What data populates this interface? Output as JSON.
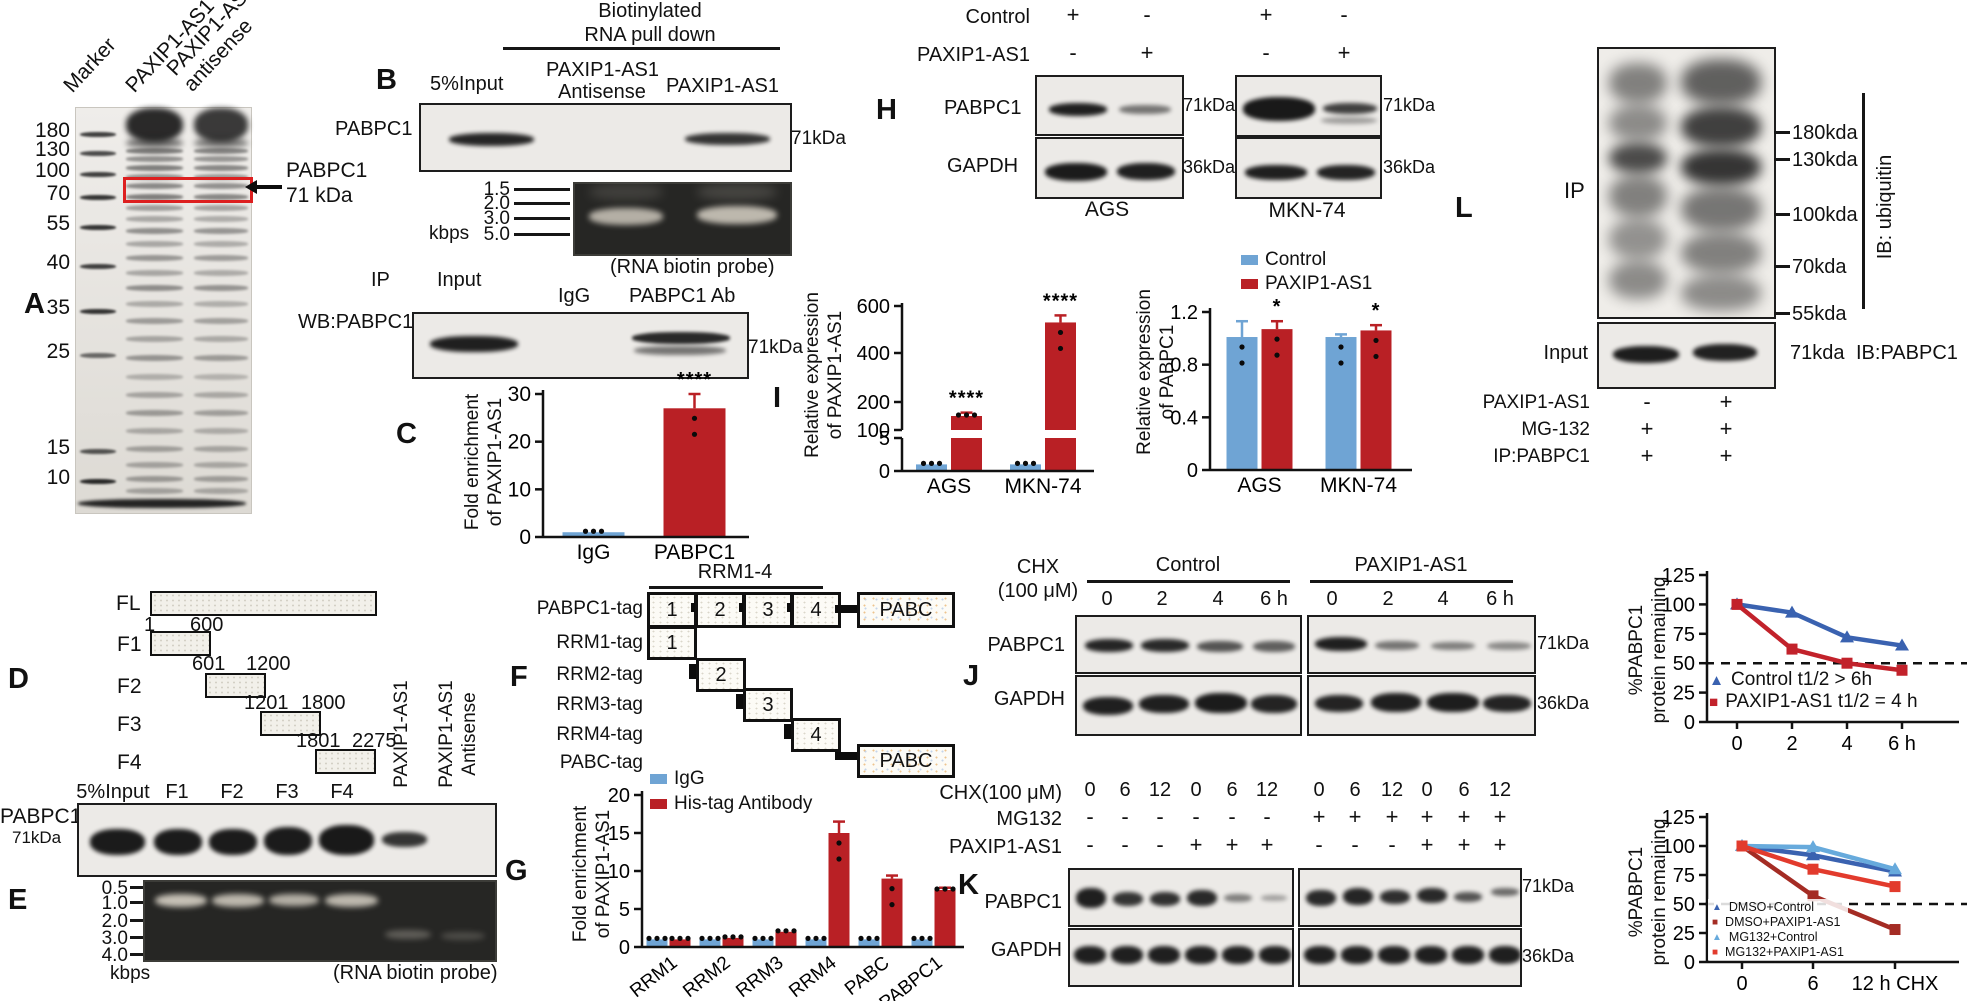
{
  "colors": {
    "blue": "#6FA4D4",
    "red": "#B92025"
  },
  "panelA": {
    "letter": "A",
    "lane1": "Marker",
    "lane2": "PAXIP1-AS1",
    "lane3a": "PAXIP1-AS1",
    "lane3b": "antisense",
    "ladder": [
      "180",
      "130",
      "100",
      "70",
      "55",
      "40",
      "35",
      "25",
      "15",
      "10"
    ],
    "target_label": "PABPC1",
    "target_kda": "71 kDa"
  },
  "panelB": {
    "letter": "B",
    "header1": "Biotinylated",
    "header2": "RNA pull down",
    "lane_input": "5%Input",
    "lane_anti1": "PAXIP1-AS1",
    "lane_anti2": "Antisense",
    "lane_sense": "PAXIP1-AS1",
    "blot_label": "PABPC1",
    "blot_kda": "71kDa",
    "gel_ticks": [
      "1.5",
      "2.0",
      "3.0",
      "5.0"
    ],
    "gel_unit": "kbps",
    "gel_caption": "(RNA biotin probe)",
    "ip_label": "IP",
    "ip_lane1": "Input",
    "ip_lane2": "IgG",
    "ip_lane3": "PABPC1 Ab",
    "wb_label": "WB:PABPC1",
    "wb_kda": "71kDa"
  },
  "panelC": {
    "letter": "C"
  },
  "panelD": {
    "letter": "D",
    "rows": [
      {
        "name": "FL"
      },
      {
        "name": "F1",
        "start": "1",
        "end": "600"
      },
      {
        "name": "F2",
        "start": "601",
        "end": "1200"
      },
      {
        "name": "F3",
        "start": "1201",
        "end": "1800"
      },
      {
        "name": "F4",
        "start": "1801",
        "end": "2275"
      }
    ],
    "lanes": [
      "5%Input",
      "F1",
      "F2",
      "F3",
      "F4"
    ],
    "rot1": "PAXIP1-AS1",
    "rot2a": "PAXIP1-AS1",
    "rot2b": "Antisense",
    "blot_label": "PABPC1",
    "blot_kda": "71kDa"
  },
  "panelE": {
    "letter": "E",
    "ticks": [
      "0.5",
      "1.0",
      "2.0",
      "3.0",
      "4.0"
    ],
    "unit": "kbps",
    "caption": "(RNA biotin probe)"
  },
  "panelF": {
    "letter": "F",
    "bracket": "RRM1-4",
    "row_labels": [
      "PABPC1-tag",
      "RRM1-tag",
      "RRM2-tag",
      "RRM3-tag",
      "RRM4-tag",
      "PABC-tag"
    ],
    "box_numbers": [
      "1",
      "2",
      "3",
      "4"
    ],
    "pabc": "PABC"
  },
  "panelG": {
    "letter": "G",
    "legend": [
      "IgG",
      "His-tag Antibody"
    ]
  },
  "panelH": {
    "letter": "H",
    "row1_label": "Control",
    "row2_label": "PAXIP1-AS1",
    "signs_row1": [
      "+",
      "-",
      "+",
      "-"
    ],
    "signs_row2": [
      "-",
      "+",
      "-",
      "+"
    ],
    "blot1_label": "PABPC1",
    "blot2_label": "GAPDH",
    "kda1": "71kDa",
    "kda2": "36kDa",
    "cells": [
      "AGS",
      "MKN-74"
    ]
  },
  "panelI": {
    "letter": "I",
    "legend": [
      "Control",
      "PAXIP1-AS1"
    ]
  },
  "panelJ": {
    "letter": "J",
    "chx1": "CHX",
    "chx2": "(100 μM)",
    "group1": "Control",
    "group2": "PAXIP1-AS1",
    "times": [
      "0",
      "2",
      "4",
      "6 h"
    ],
    "blot1_label": "PABPC1",
    "blot2_label": "GAPDH",
    "kda1": "71kDa",
    "kda2": "36kDa"
  },
  "panelK": {
    "letter": "K",
    "row1_label": "CHX(100 μM)",
    "row2_label": "MG132",
    "row3_label": "PAXIP1-AS1",
    "times": [
      "0",
      "6",
      "12",
      "0",
      "6",
      "12",
      "0",
      "6",
      "12",
      "0",
      "6",
      "12"
    ],
    "mg_signs": [
      "-",
      "-",
      "-",
      "-",
      "-",
      "-",
      "+",
      "+",
      "+",
      "+",
      "+",
      "+"
    ],
    "pax_signs": [
      "-",
      "-",
      "-",
      "+",
      "+",
      "+",
      "-",
      "-",
      "-",
      "+",
      "+",
      "+"
    ],
    "blot1_label": "PABPC1",
    "blot2_label": "GAPDH",
    "kda1": "71kDa",
    "kda2": "36kDa"
  },
  "panelL": {
    "letter": "L",
    "ip_label": "IP",
    "markers": [
      "180kda",
      "130kda",
      "100kda",
      "70kda",
      "55kda"
    ],
    "ib1": "IB: ubiquitin",
    "input_label": "Input",
    "input_kda": "71kda",
    "ib2": "IB:PABPC1",
    "rows": [
      {
        "label": "PAXIP1-AS1",
        "v1": "-",
        "v2": "+"
      },
      {
        "label": "MG-132",
        "v1": "+",
        "v2": "+"
      },
      {
        "label": "IP:PABPC1",
        "v1": "+",
        "v2": "+"
      }
    ]
  },
  "chart_data": [
    {
      "id": "c",
      "type": "bar",
      "ylabel_lines": [
        "Fold enrichment",
        "of PAXIP1-AS1"
      ],
      "categories": [
        "IgG",
        "PABPC1"
      ],
      "values": [
        1,
        27
      ],
      "bar_colors": [
        "blue",
        "red"
      ],
      "err": [
        0,
        3
      ],
      "sig": [
        "",
        "****"
      ],
      "yticks": [
        0,
        10,
        20,
        30
      ],
      "ylim": [
        0,
        30
      ]
    },
    {
      "id": "g",
      "type": "bar",
      "ylabel_lines": [
        "Fold enrichment",
        "of PAXIP1-AS1"
      ],
      "categories": [
        "RRM1",
        "RRM2",
        "RRM3",
        "RRM4",
        "PABC",
        "PABPC1"
      ],
      "series": [
        {
          "name": "IgG",
          "color_key": "blue",
          "values": [
            1,
            1,
            1,
            1,
            1,
            1
          ],
          "err": [
            0,
            0,
            0,
            0,
            0,
            0
          ]
        },
        {
          "name": "His-tag Antibody",
          "color_key": "red",
          "values": [
            1,
            1.2,
            2,
            15,
            9,
            7.5
          ],
          "err": [
            0,
            0,
            0,
            1.5,
            0.4,
            0.3
          ]
        }
      ],
      "yticks": [
        0,
        5,
        10,
        15,
        20
      ],
      "ylim": [
        0,
        20
      ],
      "sig": [
        "",
        "",
        "",
        "",
        "",
        ""
      ],
      "x_rotate": -38
    },
    {
      "id": "i1",
      "type": "bar",
      "ylabel_lines": [
        "Relative expression",
        "of PAXIP1-AS1"
      ],
      "categories": [
        "AGS",
        "MKN-74"
      ],
      "series": [
        {
          "name": "Control",
          "color_key": "blue",
          "values": [
            1,
            1
          ],
          "err": [
            0,
            0
          ]
        },
        {
          "name": "PAXIP1-AS1",
          "color_key": "red",
          "values": [
            150,
            530
          ],
          "err": [
            12,
            30
          ]
        }
      ],
      "yticks": [
        0,
        5,
        100,
        200,
        400,
        600
      ],
      "broken": {
        "low": 5,
        "high": 100
      },
      "sig": [
        "****",
        "****"
      ]
    },
    {
      "id": "i2",
      "type": "bar",
      "ylabel_lines": [
        "Relative expression",
        "of PABPC1"
      ],
      "categories": [
        "AGS",
        "MKN-74"
      ],
      "series": [
        {
          "name": "Control",
          "color_key": "blue",
          "values": [
            1.01,
            1.01
          ],
          "err": [
            0.12,
            0.02
          ]
        },
        {
          "name": "PAXIP1-AS1",
          "color_key": "red",
          "values": [
            1.07,
            1.06
          ],
          "err": [
            0.06,
            0.04
          ]
        }
      ],
      "yticks": [
        0,
        0.4,
        0.8,
        1.2
      ],
      "ylim": [
        0,
        1.2
      ],
      "sig": [
        "*",
        "*"
      ]
    },
    {
      "id": "j",
      "type": "line",
      "ylabel_lines": [
        "%PABPC1",
        "protein remaining"
      ],
      "x": [
        0,
        2,
        4,
        6
      ],
      "xtick_labels": [
        "0",
        "2",
        "4",
        "6 h"
      ],
      "yticks": [
        0,
        25,
        50,
        75,
        100,
        125
      ],
      "ylim": [
        0,
        125
      ],
      "dashed_y": 50,
      "series": [
        {
          "name": "Control t1/2 > 6h",
          "color": "#3A62B0",
          "marker": "triangle",
          "values": [
            100,
            93,
            72,
            65
          ]
        },
        {
          "name": "PAXIP1-AS1 t1/2 = 4 h",
          "color": "#C2222B",
          "marker": "square",
          "values": [
            100,
            62,
            50,
            44
          ]
        }
      ]
    },
    {
      "id": "k",
      "type": "line",
      "ylabel_lines": [
        "%PABPC1",
        "protein remaining"
      ],
      "x": [
        0,
        6,
        12
      ],
      "xtick_labels": [
        "0",
        "6",
        "12 h CHX"
      ],
      "yticks": [
        0,
        25,
        50,
        75,
        100,
        125
      ],
      "ylim": [
        0,
        125
      ],
      "dashed_y": 50,
      "series": [
        {
          "name": "DMSO+Control",
          "color": "#3A62B0",
          "marker": "triangle",
          "values": [
            100,
            92,
            78
          ]
        },
        {
          "name": "DMSO+PAXIP1-AS1",
          "color": "#A42C24",
          "marker": "square",
          "values": [
            100,
            57,
            28
          ]
        },
        {
          "name": "MG132+Control",
          "color": "#67AADC",
          "marker": "triangle",
          "values": [
            100,
            99,
            80
          ]
        },
        {
          "name": "MG132+PAXIP1-AS1",
          "color": "#E23B2D",
          "marker": "square",
          "values": [
            100,
            80,
            65
          ]
        }
      ]
    }
  ]
}
